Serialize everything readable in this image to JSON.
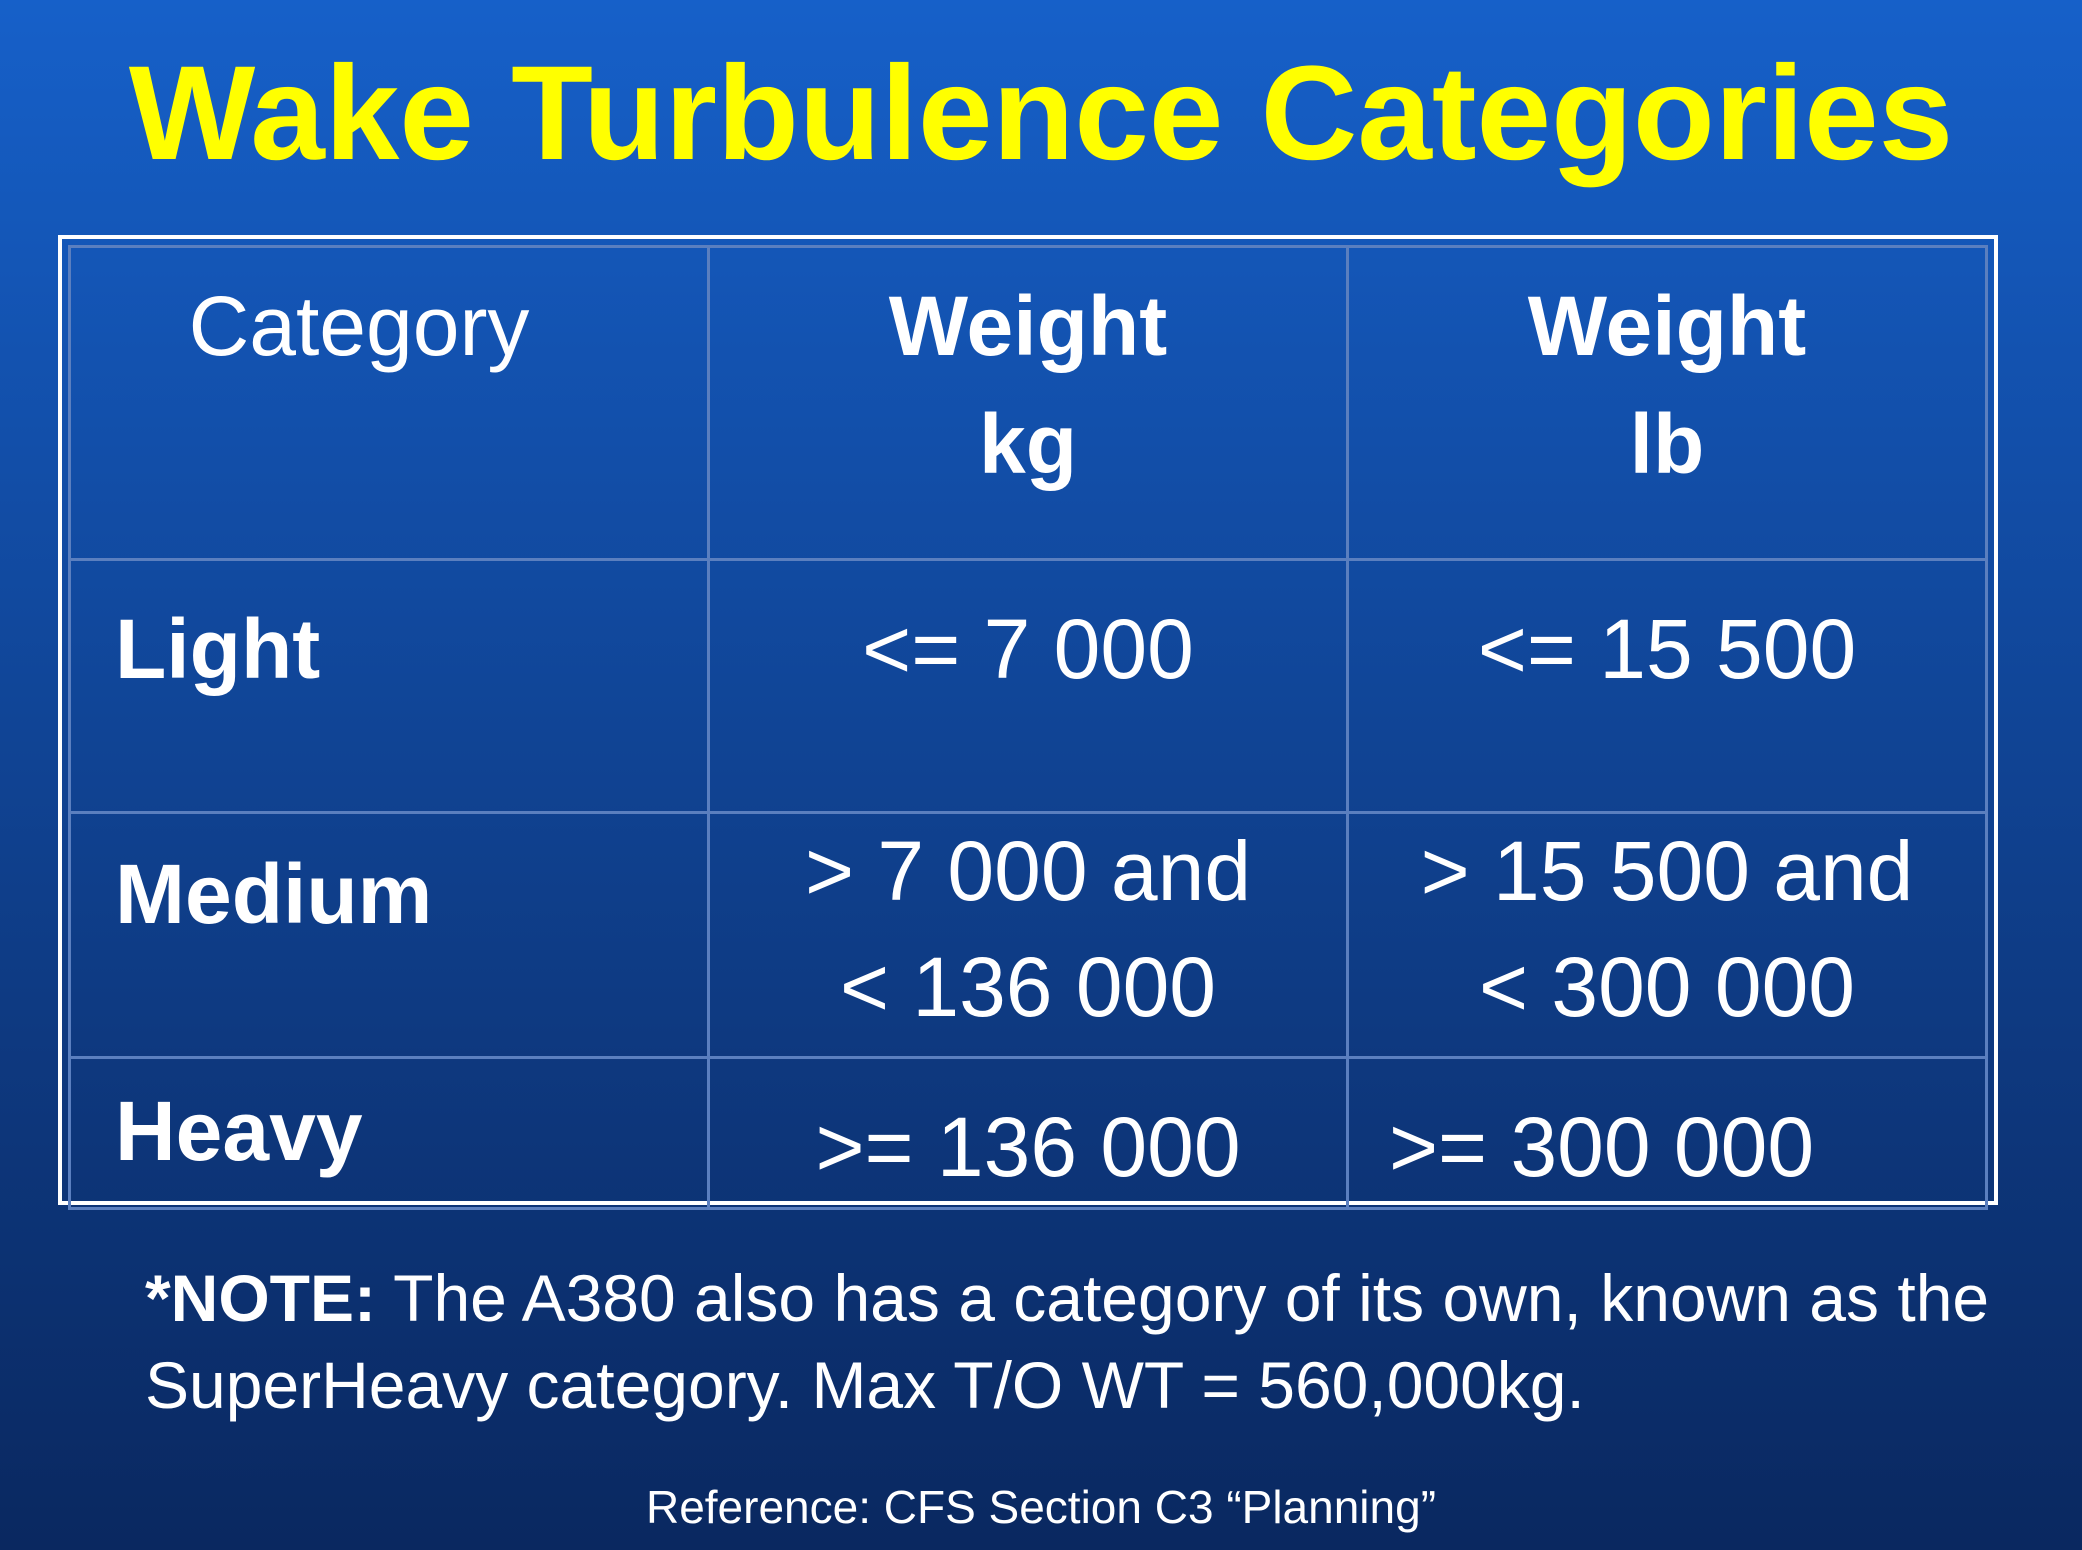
{
  "title": "Wake Turbulence Categories",
  "table": {
    "header": {
      "category": "Category",
      "weight_kg_line1": "Weight",
      "weight_kg_line2": "kg",
      "weight_lb_line1": "Weight",
      "weight_lb_line2": "lb"
    },
    "rows": [
      {
        "category": "Light",
        "kg_line1": "<= 7 000",
        "kg_line2": "",
        "lb_line1": "<= 15 500",
        "lb_line2": ""
      },
      {
        "category": "Medium",
        "kg_line1": "> 7 000 and",
        "kg_line2": "< 136 000",
        "lb_line1": "> 15 500 and",
        "lb_line2": "< 300 000"
      },
      {
        "category": "Heavy",
        "kg_line1": ">= 136 000",
        "kg_line2": "",
        "lb_line1": ">= 300 000",
        "lb_line2": ""
      }
    ]
  },
  "note": {
    "label": "*NOTE:",
    "text": " The A380 also has a category of its own, known as the SuperHeavy category. Max T/O WT = 560,000kg."
  },
  "reference": "Reference: CFS Section C3 “Planning”",
  "colors": {
    "title": "#ffff00",
    "background_top": "#1660c9",
    "background_bottom": "#0a2860",
    "text": "#ffffff"
  }
}
